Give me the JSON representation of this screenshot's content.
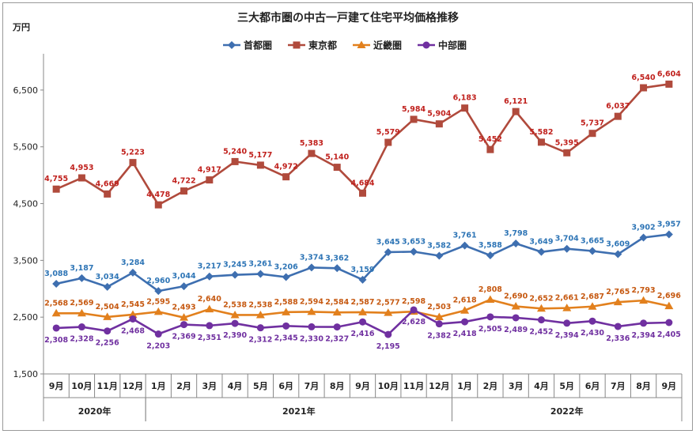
{
  "chart_data": {
    "type": "line",
    "title": "三大都市圏の中古一戸建て住宅平均価格推移",
    "ylabel": "万円",
    "ylim": [
      1500,
      7000
    ],
    "yticks": [
      1500,
      2500,
      3500,
      4500,
      5500,
      6500
    ],
    "ytick_labels": [
      "1,500",
      "2,500",
      "3,500",
      "4,500",
      "5,500",
      "6,500"
    ],
    "grid": false,
    "legend_position": "top-center",
    "categories": [
      "9月",
      "10月",
      "11月",
      "12月",
      "1月",
      "2月",
      "3月",
      "4月",
      "5月",
      "6月",
      "7月",
      "8月",
      "9月",
      "10月",
      "11月",
      "12月",
      "1月",
      "2月",
      "3月",
      "4月",
      "5月",
      "6月",
      "7月",
      "8月",
      "9月"
    ],
    "year_groups": [
      {
        "label": "2020年",
        "start": 0,
        "end": 3
      },
      {
        "label": "2021年",
        "start": 4,
        "end": 15
      },
      {
        "label": "2022年",
        "start": 16,
        "end": 24
      }
    ],
    "series": [
      {
        "name": "首都圏",
        "color": "#3e6fb0",
        "label_color": "#2e75b6",
        "marker": "diamond",
        "values": [
          3088,
          3187,
          3034,
          3284,
          2960,
          3044,
          3217,
          3245,
          3261,
          3206,
          3374,
          3362,
          3159,
          3645,
          3653,
          3582,
          3761,
          3588,
          3798,
          3649,
          3704,
          3665,
          3609,
          3902,
          3957
        ],
        "labels": [
          "3,088",
          "3,187",
          "3,034",
          "3,284",
          "2,960",
          "3,044",
          "3,217",
          "3,245",
          "3,261",
          "3,206",
          "3,374",
          "3,362",
          "3,159",
          "3,645",
          "3,653",
          "3,582",
          "3,761",
          "3,588",
          "3,798",
          "3,649",
          "3,704",
          "3,665",
          "3,609",
          "3,902",
          "3,957"
        ]
      },
      {
        "name": "東京都",
        "color": "#b04a3c",
        "label_color": "#c0211d",
        "marker": "square",
        "values": [
          4755,
          4953,
          4669,
          5223,
          4478,
          4722,
          4917,
          5240,
          5177,
          4972,
          5383,
          5140,
          4684,
          5579,
          5984,
          5904,
          6183,
          5452,
          6121,
          5582,
          5395,
          5737,
          6037,
          6540,
          6604
        ],
        "labels": [
          "4,755",
          "4,953",
          "4,669",
          "5,223",
          "4,478",
          "4,722",
          "4,917",
          "5,240",
          "5,177",
          "4,972",
          "5,383",
          "5,140",
          "4,684",
          "5,579",
          "5,984",
          "5,904",
          "6,183",
          "5,452",
          "6,121",
          "5,582",
          "5,395",
          "5,737",
          "6,037",
          "6,540",
          "6,604"
        ]
      },
      {
        "name": "近畿圏",
        "color": "#e2801d",
        "label_color": "#c65911",
        "marker": "triangle",
        "values": [
          2568,
          2569,
          2504,
          2545,
          2595,
          2493,
          2640,
          2538,
          2538,
          2588,
          2594,
          2584,
          2587,
          2577,
          2598,
          2503,
          2618,
          2808,
          2690,
          2652,
          2661,
          2687,
          2765,
          2793,
          2696
        ],
        "labels": [
          "2,568",
          "2,569",
          "2,504",
          "2,545",
          "2,595",
          "2,493",
          "2,640",
          "2,538",
          "2,538",
          "2,588",
          "2,594",
          "2,584",
          "2,587",
          "2,577",
          "2,598",
          "2,503",
          "2,618",
          "2,808",
          "2,690",
          "2,652",
          "2,661",
          "2,687",
          "2,765",
          "2,793",
          "2,696"
        ]
      },
      {
        "name": "中部圏",
        "color": "#7030a0",
        "label_color": "#7030a0",
        "marker": "circle",
        "values": [
          2308,
          2328,
          2256,
          2468,
          2203,
          2369,
          2351,
          2390,
          2312,
          2345,
          2330,
          2327,
          2416,
          2195,
          2628,
          2382,
          2418,
          2505,
          2489,
          2452,
          2394,
          2430,
          2336,
          2394,
          2405
        ],
        "labels": [
          "2,308",
          "2,328",
          "2,256",
          "2,468",
          "2,203",
          "2,369",
          "2,351",
          "2,390",
          "2,312",
          "2,345",
          "2,330",
          "2,327",
          "2,416",
          "2,195",
          "2,628",
          "2,382",
          "2,418",
          "2,505",
          "2,489",
          "2,452",
          "2,394",
          "2,430",
          "2,336",
          "2,394",
          "2,405"
        ]
      }
    ]
  }
}
